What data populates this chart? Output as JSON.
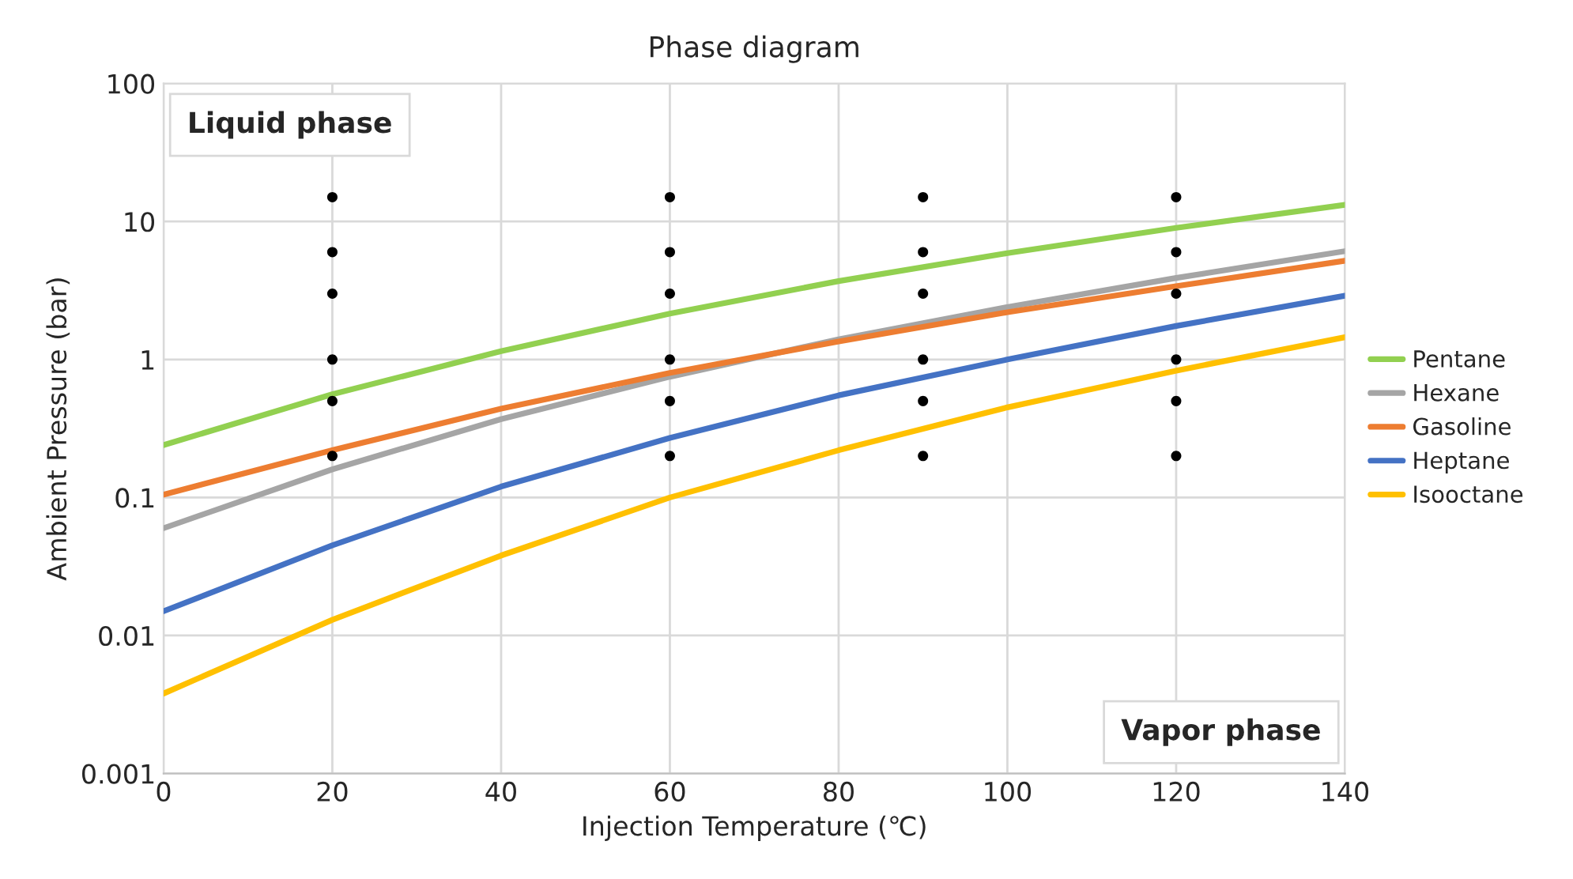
{
  "chart_data": {
    "type": "line",
    "title": "Phase diagram",
    "xlabel": "Injection Temperature (℃)",
    "ylabel": "Ambient Pressure (bar)",
    "x": [
      0,
      20,
      40,
      60,
      80,
      100,
      120,
      140
    ],
    "series": [
      {
        "name": "Pentane",
        "color": "#92d050",
        "values": [
          0.24,
          0.56,
          1.15,
          2.15,
          3.7,
          5.9,
          9.0,
          13.2
        ]
      },
      {
        "name": "Hexane",
        "color": "#a5a5a5",
        "values": [
          0.06,
          0.16,
          0.37,
          0.75,
          1.4,
          2.4,
          3.9,
          6.1
        ]
      },
      {
        "name": "Gasoline",
        "color": "#ed7d31",
        "values": [
          0.105,
          0.22,
          0.44,
          0.8,
          1.35,
          2.2,
          3.4,
          5.2
        ]
      },
      {
        "name": "Heptane",
        "color": "#4472c4",
        "values": [
          0.015,
          0.045,
          0.12,
          0.27,
          0.55,
          1.0,
          1.75,
          2.9
        ]
      },
      {
        "name": "Isooctane",
        "color": "#ffc000",
        "values": [
          0.0038,
          0.013,
          0.038,
          0.1,
          0.22,
          0.45,
          0.83,
          1.45
        ]
      },
      {
        "type": "scatter",
        "color": "#000000",
        "marker": "circle",
        "x": [
          20,
          20,
          20,
          20,
          20,
          20,
          60,
          60,
          60,
          60,
          60,
          60,
          90,
          90,
          90,
          90,
          90,
          90,
          120,
          120,
          120,
          120,
          120,
          120
        ],
        "values": [
          0.2,
          0.5,
          1,
          3,
          6,
          15,
          0.2,
          0.5,
          1,
          3,
          6,
          15,
          0.2,
          0.5,
          1,
          3,
          6,
          15,
          0.2,
          0.5,
          1,
          3,
          6,
          15
        ]
      }
    ],
    "annotations": [
      "Liquid phase",
      "Vapor phase"
    ],
    "log": "y",
    "xlim": [
      0,
      140
    ],
    "xticks": [
      0,
      20,
      40,
      60,
      80,
      100,
      120,
      140
    ],
    "ylim": [
      0.001,
      100
    ],
    "yticks": [
      0.001,
      0.01,
      0.1,
      1,
      10,
      100
    ],
    "grid": true,
    "legend": "right",
    "marker": "none",
    "line_style": "solid"
  }
}
